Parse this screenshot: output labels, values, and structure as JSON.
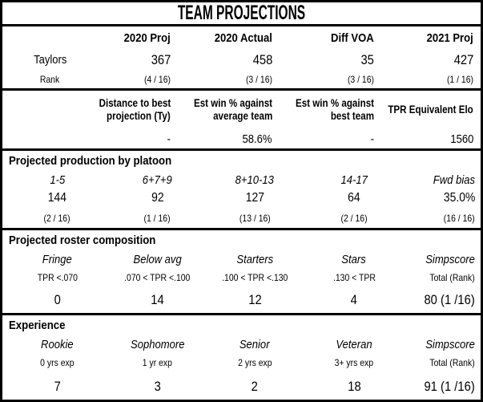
{
  "title": "TEAM PROJECTIONS",
  "text_color": "#000000",
  "border_color": "#000000",
  "background_color": "#ffffff",
  "summary": {
    "row_label": "Taylors",
    "rank_label": "Rank",
    "columns": [
      "2020 Proj",
      "2020 Actual",
      "Diff VOA",
      "2021 Proj"
    ],
    "values": [
      "367",
      "458",
      "35",
      "427"
    ],
    "ranks": [
      "(4 / 16)",
      "(3 / 16)",
      "(3 / 16)",
      "(1 / 16)"
    ]
  },
  "metrics": {
    "headers": [
      {
        "line1": "Distance to best",
        "line2": "projection (Ty)"
      },
      {
        "line1": "Est win % against",
        "line2": "average team"
      },
      {
        "line1": "Est win % against",
        "line2": "best team"
      },
      {
        "line1": "TPR Equivalent Elo",
        "line2": ""
      }
    ],
    "values": [
      "-",
      "58.6%",
      "-",
      "1560"
    ]
  },
  "platoon": {
    "title": "Projected production by platoon",
    "headers": [
      "1-5",
      "6+7+9",
      "8+10-13",
      "14-17",
      "Fwd bias"
    ],
    "values": [
      "144",
      "92",
      "127",
      "64",
      "35.0%"
    ],
    "ranks": [
      "(2 / 16)",
      "(1 / 16)",
      "(13 / 16)",
      "(2 / 16)",
      "(16 / 16)"
    ]
  },
  "roster": {
    "title": "Projected roster composition",
    "headers": [
      "Fringe",
      "Below avg",
      "Starters",
      "Stars",
      "Simpscore"
    ],
    "sublabels": [
      "TPR <.070",
      ".070 < TPR <.100",
      ".100 < TPR <.130",
      ".130 < TPR",
      "Total (Rank)"
    ],
    "values": [
      "0",
      "14",
      "12",
      "4",
      "80 (1 /16)"
    ]
  },
  "experience": {
    "title": "Experience",
    "headers": [
      "Rookie",
      "Sophomore",
      "Senior",
      "Veteran",
      "Simpscore"
    ],
    "sublabels": [
      "0 yrs exp",
      "1 yr exp",
      "2 yrs exp",
      "3+ yrs exp",
      "Total (Rank)"
    ],
    "values": [
      "7",
      "3",
      "2",
      "18",
      "91 (1 /16)"
    ]
  },
  "chart_data": {
    "type": "table",
    "title": "TEAM PROJECTIONS",
    "team": "Taylors",
    "summary": {
      "columns": [
        "2020 Proj",
        "2020 Actual",
        "Diff VOA",
        "2021 Proj"
      ],
      "values": [
        367,
        458,
        35,
        427
      ],
      "ranks": [
        "4 / 16",
        "3 / 16",
        "3 / 16",
        "1 / 16"
      ]
    },
    "metrics": {
      "distance_to_best_projection_ty": "-",
      "est_win_pct_against_average_team": "58.6%",
      "est_win_pct_against_best_team": "-",
      "tpr_equivalent_elo": 1560
    },
    "projected_production_by_platoon": {
      "categories": [
        "1-5",
        "6+7+9",
        "8+10-13",
        "14-17",
        "Fwd bias"
      ],
      "values": [
        144,
        92,
        127,
        64,
        "35.0%"
      ],
      "ranks": [
        "2 / 16",
        "1 / 16",
        "13 / 16",
        "2 / 16",
        "16 / 16"
      ]
    },
    "projected_roster_composition": {
      "categories": [
        "Fringe",
        "Below avg",
        "Starters",
        "Stars"
      ],
      "definitions": [
        "TPR <.070",
        ".070 < TPR <.100",
        ".100 < TPR <.130",
        ".130 < TPR"
      ],
      "counts": [
        0,
        14,
        12,
        4
      ],
      "simpscore_total_rank": "80 (1 /16)"
    },
    "experience": {
      "categories": [
        "Rookie",
        "Sophomore",
        "Senior",
        "Veteran"
      ],
      "definitions": [
        "0 yrs exp",
        "1 yr exp",
        "2 yrs exp",
        "3+ yrs exp"
      ],
      "counts": [
        7,
        3,
        2,
        18
      ],
      "simpscore_total_rank": "91 (1 /16)"
    }
  }
}
